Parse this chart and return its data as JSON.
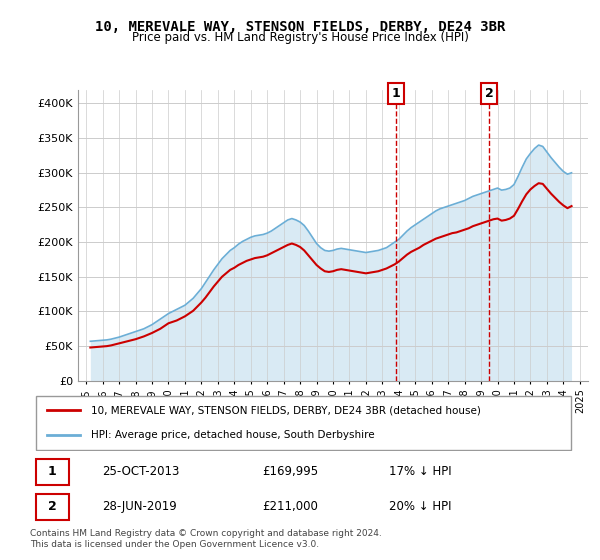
{
  "title": "10, MEREVALE WAY, STENSON FIELDS, DERBY, DE24 3BR",
  "subtitle": "Price paid vs. HM Land Registry's House Price Index (HPI)",
  "ylabel_ticks": [
    "£0",
    "£50K",
    "£100K",
    "£150K",
    "£200K",
    "£250K",
    "£300K",
    "£350K",
    "£400K"
  ],
  "ytick_values": [
    0,
    50000,
    100000,
    150000,
    200000,
    250000,
    300000,
    350000,
    400000
  ],
  "ylim": [
    0,
    420000
  ],
  "xlim_start": 1995.0,
  "xlim_end": 2025.5,
  "xticks": [
    1995,
    1996,
    1997,
    1998,
    1999,
    2000,
    2001,
    2002,
    2003,
    2004,
    2005,
    2006,
    2007,
    2008,
    2009,
    2010,
    2011,
    2012,
    2013,
    2014,
    2015,
    2016,
    2017,
    2018,
    2019,
    2020,
    2021,
    2022,
    2023,
    2024,
    2025
  ],
  "hpi_color": "#6baed6",
  "price_color": "#cc0000",
  "marker_vline_color": "#cc0000",
  "marker1_x": 2013.82,
  "marker2_x": 2019.5,
  "transaction1": {
    "date": "25-OCT-2013",
    "price": "£169,995",
    "change": "17% ↓ HPI"
  },
  "transaction2": {
    "date": "28-JUN-2019",
    "price": "£211,000",
    "change": "20% ↓ HPI"
  },
  "legend_label1": "10, MEREVALE WAY, STENSON FIELDS, DERBY, DE24 3BR (detached house)",
  "legend_label2": "HPI: Average price, detached house, South Derbyshire",
  "footer": "Contains HM Land Registry data © Crown copyright and database right 2024.\nThis data is licensed under the Open Government Licence v3.0.",
  "hpi_data": {
    "years": [
      1995.25,
      1995.5,
      1995.75,
      1996.0,
      1996.25,
      1996.5,
      1996.75,
      1997.0,
      1997.25,
      1997.5,
      1997.75,
      1998.0,
      1998.25,
      1998.5,
      1998.75,
      1999.0,
      1999.25,
      1999.5,
      1999.75,
      2000.0,
      2000.25,
      2000.5,
      2000.75,
      2001.0,
      2001.25,
      2001.5,
      2001.75,
      2002.0,
      2002.25,
      2002.5,
      2002.75,
      2003.0,
      2003.25,
      2003.5,
      2003.75,
      2004.0,
      2004.25,
      2004.5,
      2004.75,
      2005.0,
      2005.25,
      2005.5,
      2005.75,
      2006.0,
      2006.25,
      2006.5,
      2006.75,
      2007.0,
      2007.25,
      2007.5,
      2007.75,
      2008.0,
      2008.25,
      2008.5,
      2008.75,
      2009.0,
      2009.25,
      2009.5,
      2009.75,
      2010.0,
      2010.25,
      2010.5,
      2010.75,
      2011.0,
      2011.25,
      2011.5,
      2011.75,
      2012.0,
      2012.25,
      2012.5,
      2012.75,
      2013.0,
      2013.25,
      2013.5,
      2013.75,
      2014.0,
      2014.25,
      2014.5,
      2014.75,
      2015.0,
      2015.25,
      2015.5,
      2015.75,
      2016.0,
      2016.25,
      2016.5,
      2016.75,
      2017.0,
      2017.25,
      2017.5,
      2017.75,
      2018.0,
      2018.25,
      2018.5,
      2018.75,
      2019.0,
      2019.25,
      2019.5,
      2019.75,
      2020.0,
      2020.25,
      2020.5,
      2020.75,
      2021.0,
      2021.25,
      2021.5,
      2021.75,
      2022.0,
      2022.25,
      2022.5,
      2022.75,
      2023.0,
      2023.25,
      2023.5,
      2023.75,
      2024.0,
      2024.25,
      2024.5
    ],
    "values": [
      57000,
      57500,
      58000,
      58500,
      59000,
      60000,
      61500,
      63000,
      65000,
      67000,
      69000,
      71000,
      73000,
      75000,
      78000,
      81000,
      85000,
      89000,
      93000,
      97000,
      100000,
      103000,
      106000,
      109000,
      114000,
      119000,
      126000,
      133000,
      142000,
      151000,
      160000,
      168000,
      176000,
      182000,
      188000,
      192000,
      197000,
      201000,
      204000,
      207000,
      209000,
      210000,
      211000,
      213000,
      216000,
      220000,
      224000,
      228000,
      232000,
      234000,
      232000,
      229000,
      224000,
      216000,
      207000,
      198000,
      192000,
      188000,
      187000,
      188000,
      190000,
      191000,
      190000,
      189000,
      188000,
      187000,
      186000,
      185000,
      186000,
      187000,
      188000,
      190000,
      192000,
      196000,
      200000,
      204000,
      210000,
      216000,
      221000,
      225000,
      229000,
      233000,
      237000,
      241000,
      245000,
      248000,
      250000,
      252000,
      254000,
      256000,
      258000,
      260000,
      263000,
      266000,
      268000,
      270000,
      272000,
      274000,
      276000,
      278000,
      275000,
      276000,
      278000,
      283000,
      295000,
      308000,
      320000,
      328000,
      335000,
      340000,
      338000,
      330000,
      322000,
      315000,
      308000,
      302000,
      298000,
      300000
    ]
  },
  "price_data": {
    "years": [
      1995.25,
      1995.5,
      1995.75,
      1996.0,
      1996.25,
      1996.5,
      1996.75,
      1997.0,
      1997.25,
      1997.5,
      1997.75,
      1998.0,
      1998.25,
      1998.5,
      1998.75,
      1999.0,
      1999.25,
      1999.5,
      1999.75,
      2000.0,
      2000.25,
      2000.5,
      2000.75,
      2001.0,
      2001.25,
      2001.5,
      2001.75,
      2002.0,
      2002.25,
      2002.5,
      2002.75,
      2003.0,
      2003.25,
      2003.5,
      2003.75,
      2004.0,
      2004.25,
      2004.5,
      2004.75,
      2005.0,
      2005.25,
      2005.5,
      2005.75,
      2006.0,
      2006.25,
      2006.5,
      2006.75,
      2007.0,
      2007.25,
      2007.5,
      2007.75,
      2008.0,
      2008.25,
      2008.5,
      2008.75,
      2009.0,
      2009.25,
      2009.5,
      2009.75,
      2010.0,
      2010.25,
      2010.5,
      2010.75,
      2011.0,
      2011.25,
      2011.5,
      2011.75,
      2012.0,
      2012.25,
      2012.5,
      2012.75,
      2013.0,
      2013.25,
      2013.5,
      2013.75,
      2014.0,
      2014.25,
      2014.5,
      2014.75,
      2015.0,
      2015.25,
      2015.5,
      2015.75,
      2016.0,
      2016.25,
      2016.5,
      2016.75,
      2017.0,
      2017.25,
      2017.5,
      2017.75,
      2018.0,
      2018.25,
      2018.5,
      2018.75,
      2019.0,
      2019.25,
      2019.5,
      2019.75,
      2020.0,
      2020.25,
      2020.5,
      2020.75,
      2021.0,
      2021.25,
      2021.5,
      2021.75,
      2022.0,
      2022.25,
      2022.5,
      2022.75,
      2023.0,
      2023.25,
      2023.5,
      2023.75,
      2024.0,
      2024.25,
      2024.5
    ],
    "values": [
      48000,
      48500,
      49000,
      49500,
      50000,
      51000,
      52500,
      54000,
      55500,
      57000,
      58500,
      60000,
      62000,
      64000,
      66500,
      69000,
      72000,
      75000,
      79000,
      83000,
      85000,
      87000,
      90000,
      93000,
      97000,
      101000,
      107000,
      113000,
      120000,
      128000,
      136000,
      143000,
      150000,
      155000,
      160000,
      163000,
      167000,
      170000,
      173000,
      175000,
      177000,
      178000,
      179000,
      181000,
      184000,
      187000,
      190000,
      193000,
      196000,
      198000,
      196000,
      193000,
      188000,
      181000,
      174000,
      167000,
      162000,
      158000,
      157000,
      158000,
      160000,
      161000,
      160000,
      159000,
      158000,
      157000,
      156000,
      155000,
      156000,
      157000,
      158000,
      160000,
      162000,
      165000,
      168000,
      172000,
      177000,
      182000,
      186000,
      189000,
      192000,
      196000,
      199000,
      202000,
      205000,
      207000,
      209000,
      211000,
      213000,
      214000,
      216000,
      218000,
      220000,
      223000,
      225000,
      227000,
      229000,
      231000,
      233000,
      234000,
      231000,
      232000,
      234000,
      238000,
      248000,
      259000,
      269000,
      276000,
      281000,
      285000,
      284000,
      277000,
      270000,
      264000,
      258000,
      253000,
      249000,
      252000
    ]
  }
}
